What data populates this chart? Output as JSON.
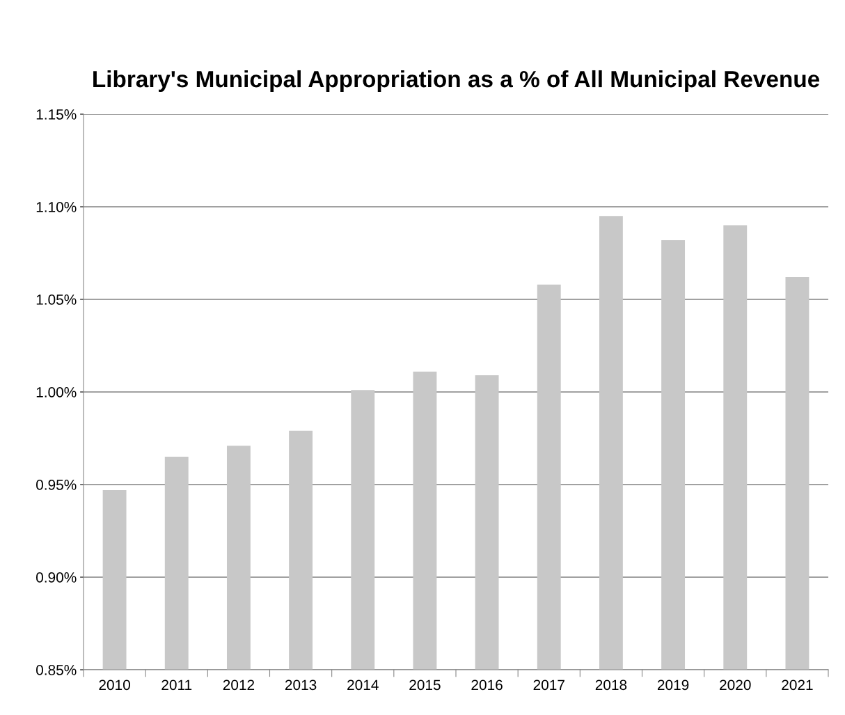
{
  "chart_data": {
    "type": "bar",
    "title": "Library's Municipal Appropriation as a % of All Municipal Revenue",
    "categories": [
      "2010",
      "2011",
      "2012",
      "2013",
      "2014",
      "2015",
      "2016",
      "2017",
      "2018",
      "2019",
      "2020",
      "2021"
    ],
    "values": [
      0.947,
      0.965,
      0.971,
      0.979,
      1.001,
      1.011,
      1.009,
      1.058,
      1.095,
      1.082,
      1.09,
      1.062
    ],
    "color": "#c8c8c8",
    "ylim": [
      0.85,
      1.15
    ],
    "yticks": [
      {
        "value": 0.85,
        "label": "0.85%"
      },
      {
        "value": 0.9,
        "label": "0.90%"
      },
      {
        "value": 0.95,
        "label": "0.95%"
      },
      {
        "value": 1.0,
        "label": "1.00%"
      },
      {
        "value": 1.05,
        "label": "1.05%"
      },
      {
        "value": 1.1,
        "label": "1.10%"
      },
      {
        "value": 1.15,
        "label": "1.15%"
      }
    ],
    "grid": "y",
    "legend": false
  }
}
